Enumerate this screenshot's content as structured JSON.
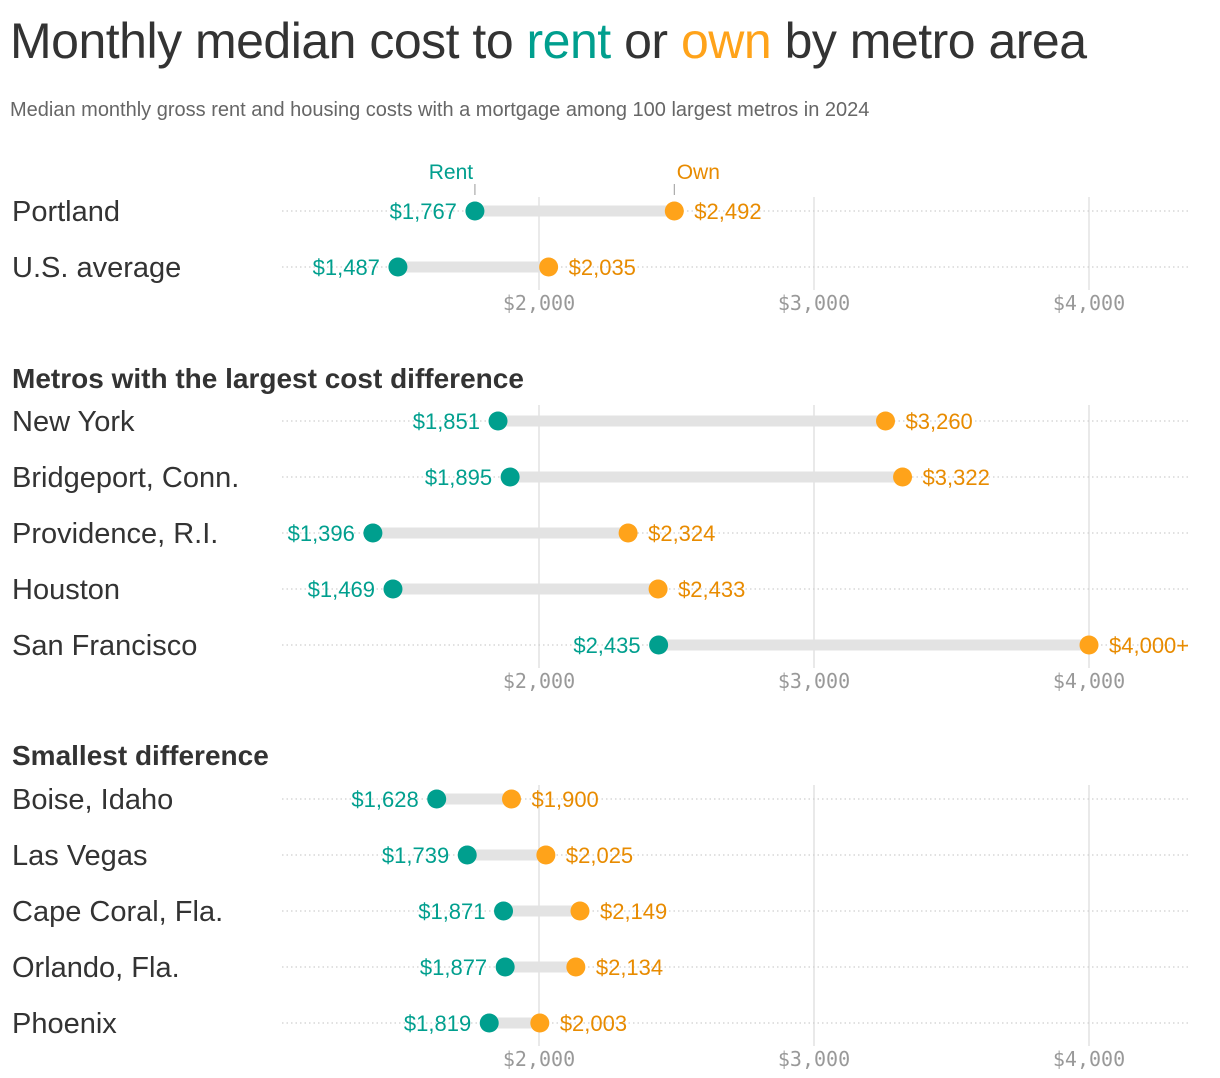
{
  "title": {
    "before": "Monthly median cost to ",
    "rent": "rent",
    "middle": " or ",
    "own": "own",
    "after": " by metro area"
  },
  "subtitle": "Median monthly gross rent and housing costs with a mortgage among 100 largest metros in 2024",
  "colors": {
    "rent": "#009f8e",
    "own": "#ffa31a",
    "own_text": "#e88b00",
    "bar": "#e3e3e3",
    "text": "#333333",
    "tick": "#999999"
  },
  "chart_data": {
    "type": "dumbbell",
    "x_ticks": [
      {
        "value": 2000,
        "label": "$2,000"
      },
      {
        "value": 3000,
        "label": "$3,000"
      },
      {
        "value": 4000,
        "label": "$4,000"
      }
    ],
    "grid": "vertical",
    "legend": {
      "rent": "Rent",
      "own": "Own"
    },
    "groups": [
      {
        "heading": "",
        "rows": [
          {
            "name": "Portland",
            "rent": 1767,
            "rent_label": "$1,767",
            "own": 2492,
            "own_label": "$2,492"
          },
          {
            "name": "U.S. average",
            "rent": 1487,
            "rent_label": "$1,487",
            "own": 2035,
            "own_label": "$2,035"
          }
        ]
      },
      {
        "heading": "Metros with the largest cost difference",
        "rows": [
          {
            "name": "New York",
            "rent": 1851,
            "rent_label": "$1,851",
            "own": 3260,
            "own_label": "$3,260"
          },
          {
            "name": "Bridgeport, Conn.",
            "rent": 1895,
            "rent_label": "$1,895",
            "own": 3322,
            "own_label": "$3,322"
          },
          {
            "name": "Providence, R.I.",
            "rent": 1396,
            "rent_label": "$1,396",
            "own": 2324,
            "own_label": "$2,324"
          },
          {
            "name": "Houston",
            "rent": 1469,
            "rent_label": "$1,469",
            "own": 2433,
            "own_label": "$2,433"
          },
          {
            "name": "San Francisco",
            "rent": 2435,
            "rent_label": "$2,435",
            "own": 4000,
            "own_label": "$4,000+"
          }
        ]
      },
      {
        "heading": "Smallest difference",
        "rows": [
          {
            "name": "Boise, Idaho",
            "rent": 1628,
            "rent_label": "$1,628",
            "own": 1900,
            "own_label": "$1,900"
          },
          {
            "name": "Las Vegas",
            "rent": 1739,
            "rent_label": "$1,739",
            "own": 2025,
            "own_label": "$2,025"
          },
          {
            "name": "Cape Coral, Fla.",
            "rent": 1871,
            "rent_label": "$1,871",
            "own": 2149,
            "own_label": "$2,149"
          },
          {
            "name": "Orlando, Fla.",
            "rent": 1877,
            "rent_label": "$1,877",
            "own": 2134,
            "own_label": "$2,134"
          },
          {
            "name": "Phoenix",
            "rent": 1819,
            "rent_label": "$1,819",
            "own": 2003,
            "own_label": "$2,003"
          }
        ]
      }
    ]
  }
}
